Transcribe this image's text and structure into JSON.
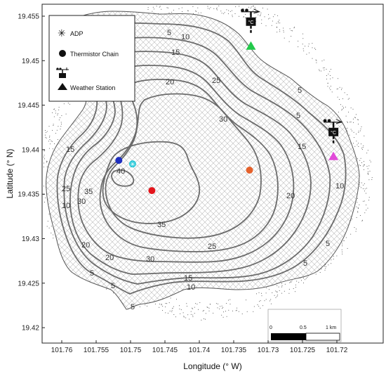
{
  "axes": {
    "xlabel": "Longitude (° W)",
    "ylabel": "Latitude (° N)",
    "xticks": [
      "101.76",
      "101.755",
      "101.75",
      "101.745",
      "101.74",
      "101.735",
      "101.73",
      "101.725",
      "101.72"
    ],
    "yticks": [
      "19.455",
      "19.45",
      "19.445",
      "19.44",
      "19.435",
      "19.43",
      "19.425",
      "19.42"
    ]
  },
  "legend": {
    "adp": "ADP",
    "thermistor": "Thermistor Chain",
    "weather": "Weather Station",
    "station_unit": "°C"
  },
  "scalebar": {
    "zero": "0",
    "half": "0.5",
    "one": "1 km"
  },
  "contour_labels": [
    "5",
    "10",
    "15",
    "20",
    "25",
    "30",
    "35",
    "40"
  ],
  "colors": {
    "contour": "#6b6b6b",
    "thermistor_blue": "#1f2fbf",
    "thermistor_red": "#e3141b",
    "thermistor_orange": "#e5612b",
    "adp_cyan": "#22c6d6",
    "station_green": "#22c94a",
    "station_magenta": "#e14ad8"
  },
  "instruments": [
    {
      "type": "thermistor",
      "lon": 101.7517,
      "lat": 19.4388,
      "color": "#1f2fbf"
    },
    {
      "type": "thermistor",
      "lon": 101.7469,
      "lat": 19.4354,
      "color": "#e3141b"
    },
    {
      "type": "thermistor",
      "lon": 101.7327,
      "lat": 19.4377,
      "color": "#e5612b"
    },
    {
      "type": "adp",
      "lon": 101.7497,
      "lat": 19.4384,
      "color": "#22c6d6"
    },
    {
      "type": "weather",
      "lon": 101.7325,
      "lat": 19.4517,
      "color": "#22c94a"
    },
    {
      "type": "weather",
      "lon": 101.7205,
      "lat": 19.4393,
      "color": "#e14ad8"
    }
  ]
}
